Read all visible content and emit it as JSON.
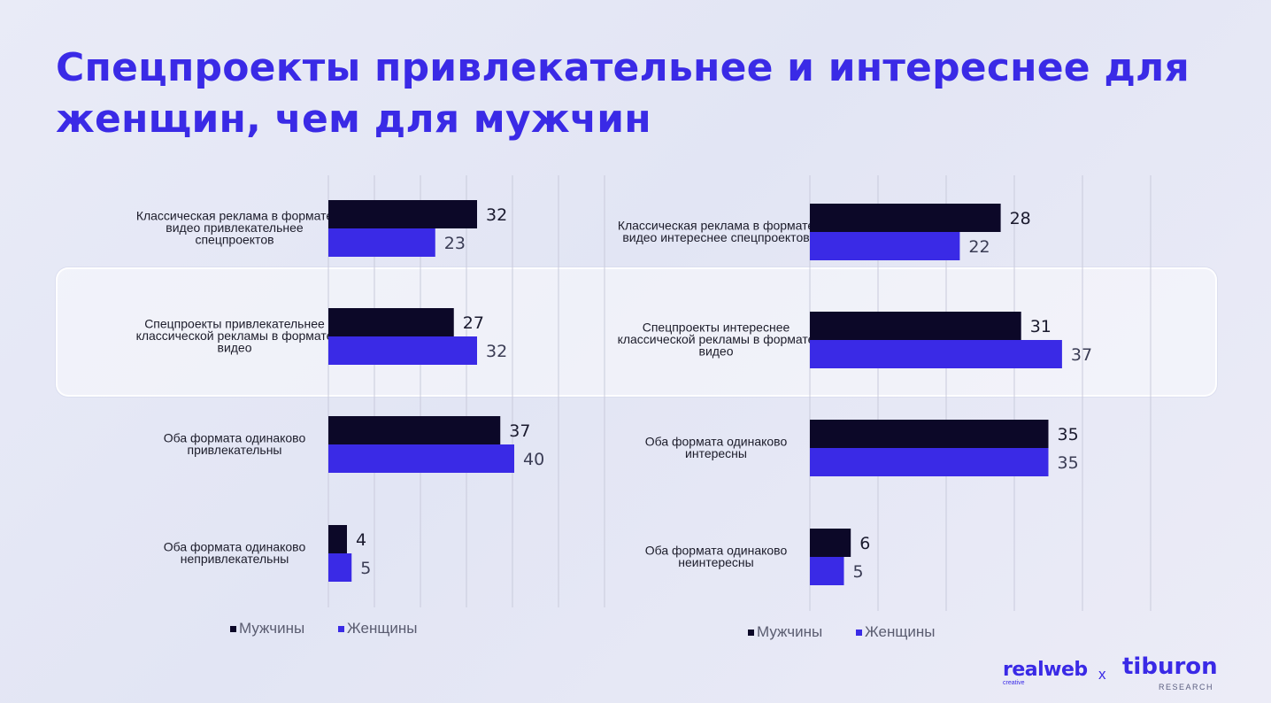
{
  "title": "Спецпроекты привлекательнее и интереснее для женщин, чем для мужчин",
  "colors": {
    "men": "#0c0828",
    "women": "#3a2ae6",
    "title": "#3a2ae6",
    "grid": "#c9cbdc"
  },
  "chart_data": [
    {
      "type": "bar",
      "orientation": "horizontal",
      "categories": [
        "Классическая реклама в формате видео привлекательнее спецпроектов",
        "Спецпроекты привлекательнее классической рекламы в формате видео",
        "Оба формата одинаково привлекательны",
        "Оба формата одинаково непривлекательны"
      ],
      "series": [
        {
          "name": "Мужчины",
          "values": [
            32,
            27,
            37,
            4
          ]
        },
        {
          "name": "Женщины",
          "values": [
            23,
            32,
            40,
            5
          ]
        }
      ],
      "xlim": [
        0,
        50
      ],
      "grid": true,
      "legend": "bottom"
    },
    {
      "type": "bar",
      "orientation": "horizontal",
      "categories": [
        "Классическая реклама в формате видео интереснее спецпроектов",
        "Спецпроекты интереснее классической рекламы в формате видео",
        "Оба формата одинаково интересны",
        "Оба формата одинаково неинтересны"
      ],
      "series": [
        {
          "name": "Мужчины",
          "values": [
            28,
            31,
            35,
            6
          ]
        },
        {
          "name": "Женщины",
          "values": [
            22,
            37,
            35,
            5
          ]
        }
      ],
      "xlim": [
        0,
        45
      ],
      "grid": true,
      "legend": "bottom"
    }
  ],
  "logos": {
    "realweb": "realweb",
    "realweb_sub": "creative",
    "separator": "x",
    "tiburon": "tiburon",
    "tiburon_sub": "RESEARCH"
  }
}
